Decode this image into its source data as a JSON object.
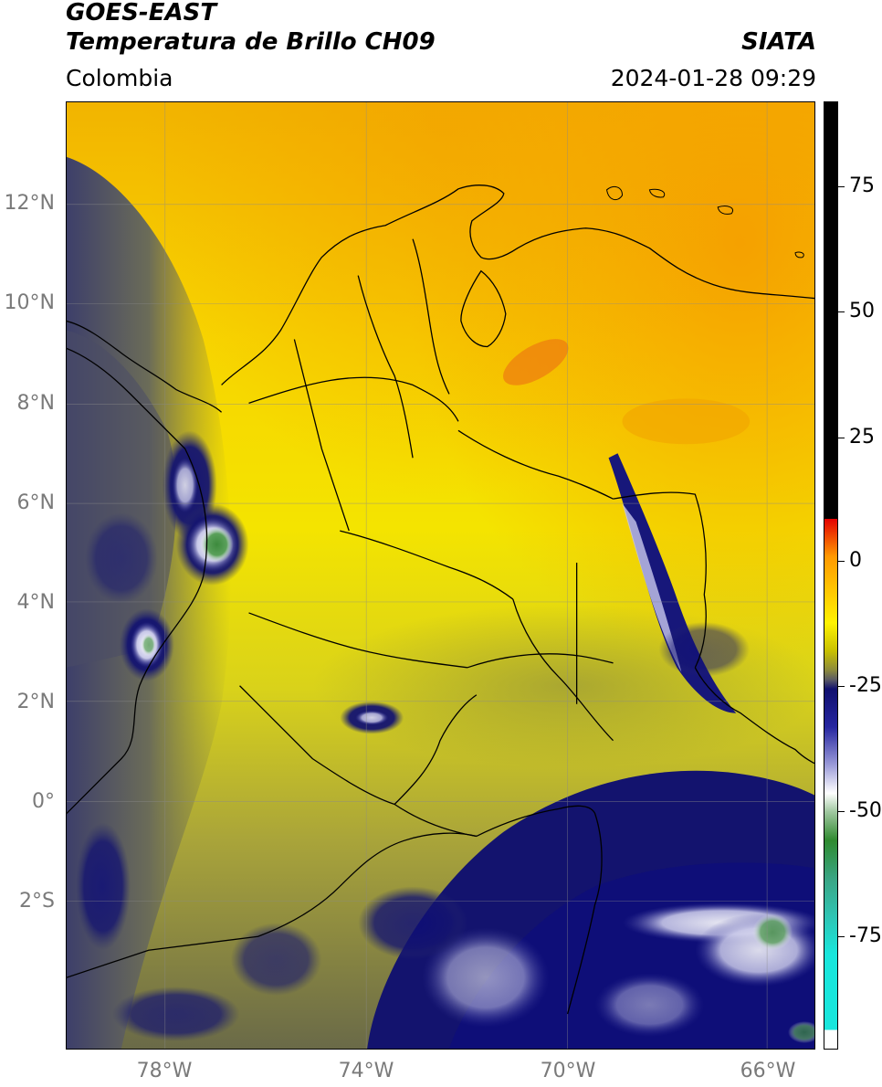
{
  "header": {
    "satellite": "GOES-EAST",
    "product": "Temperatura de Brillo CH09",
    "brand": "SIATA",
    "region": "Colombia",
    "timestamp": "2024-01-28 09:29"
  },
  "map": {
    "lat_labels": [
      "12°N",
      "10°N",
      "8°N",
      "6°N",
      "4°N",
      "2°N",
      "0°",
      "2°S"
    ],
    "lon_labels": [
      "78°W",
      "74°W",
      "70°W",
      "66°W"
    ]
  },
  "colorbar": {
    "tick_labels": [
      "75",
      "50",
      "25",
      "0",
      "-25",
      "-50",
      "-75"
    ],
    "colors": {
      "top": "#000000",
      "red": "#e30000",
      "orange": "#ff9900",
      "yellow": "#fff200",
      "olive": "#8c8a3c",
      "navy": "#10106e",
      "white": "#ffffff",
      "green": "#2f8a2f",
      "cyan": "#19e6dc"
    }
  }
}
